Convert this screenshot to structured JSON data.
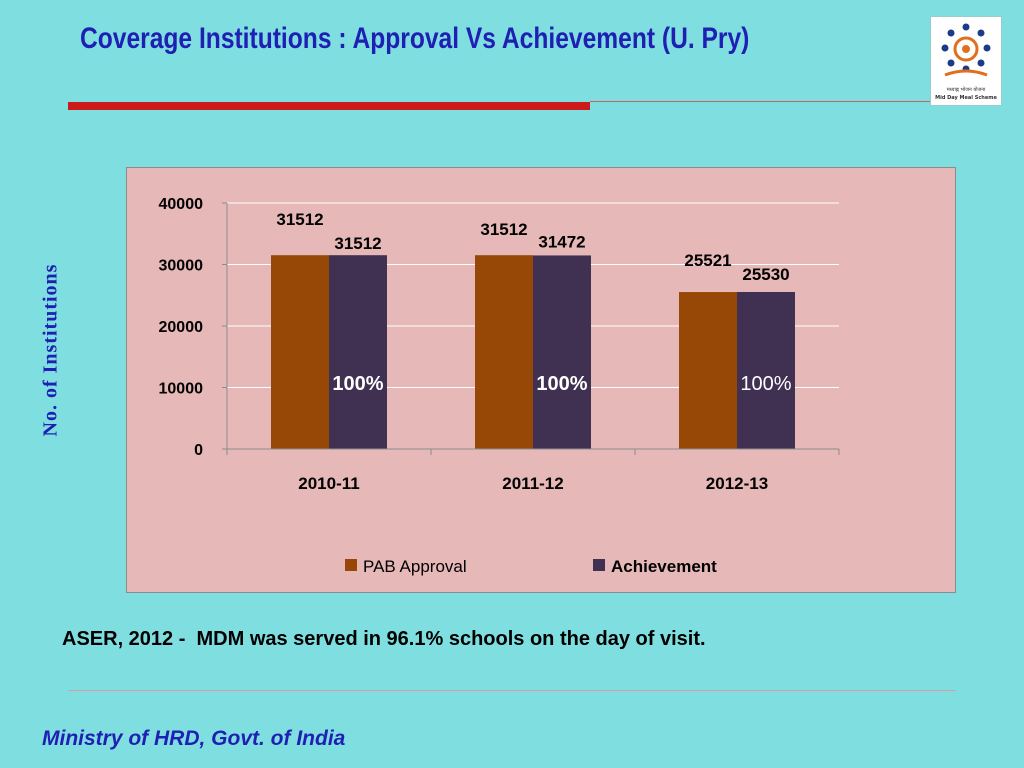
{
  "slide": {
    "title": "Coverage Institutions : Approval Vs Achievement (U. Pry)",
    "y_axis_title": "No. of Institutions",
    "note": "ASER, 2012 -  MDM was served in 96.1% schools on the day of visit.",
    "footer": "Ministry of HRD, Govt. of India",
    "logo": {
      "caption_line1": "मध्याह्न भोजन योजना",
      "caption_line2": "Mid Day Meal Scheme"
    }
  },
  "chart_data": {
    "type": "bar",
    "categories": [
      "2010-11",
      "2011-12",
      "2012-13"
    ],
    "series": [
      {
        "name": "PAB Approval",
        "values": [
          31512,
          31512,
          25521
        ],
        "color": "#974706"
      },
      {
        "name": "Achievement",
        "values": [
          31512,
          31472,
          25530
        ],
        "color": "#403152"
      }
    ],
    "percent_labels": [
      "100%",
      "100%",
      "100%"
    ],
    "y_ticks": [
      0,
      10000,
      20000,
      30000,
      40000
    ],
    "ylim": [
      0,
      40000
    ],
    "grid": true,
    "legend_position": "bottom",
    "colors": {
      "background": "#e6b8b7",
      "gridline": "#ffffff",
      "percent_text": "#ffffff"
    }
  }
}
